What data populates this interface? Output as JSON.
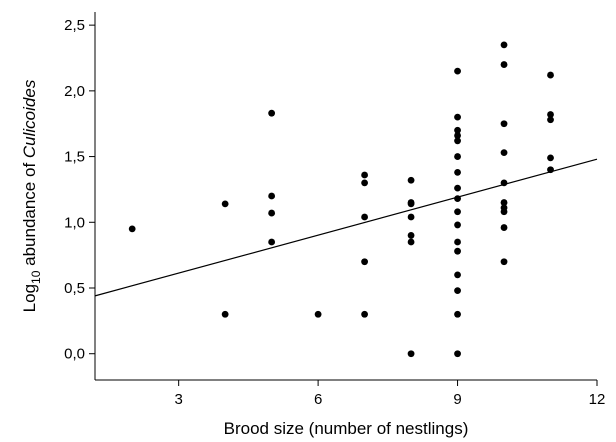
{
  "chart_data": {
    "type": "scatter",
    "xlabel": "Brood size (number of nestlings)",
    "ylabel": {
      "prefix": "Log",
      "subscript": "10",
      "middle": " abundance of ",
      "italic": "Culicoides"
    },
    "xlim": [
      1.2,
      12
    ],
    "ylim": [
      -0.2,
      2.6
    ],
    "xticks": [
      3,
      6,
      9,
      12
    ],
    "xtick_labels": [
      "3",
      "6",
      "9",
      "12"
    ],
    "yticks": [
      0,
      0.5,
      1.0,
      1.5,
      2.0,
      2.5
    ],
    "ytick_labels": [
      "0,0",
      "0,5",
      "1,0",
      "1,5",
      "2,0",
      "2,5"
    ],
    "grid": false,
    "points": [
      {
        "x": 2,
        "y": 0.95
      },
      {
        "x": 4,
        "y": 1.14
      },
      {
        "x": 4,
        "y": 0.3
      },
      {
        "x": 5,
        "y": 1.83
      },
      {
        "x": 5,
        "y": 1.2
      },
      {
        "x": 5,
        "y": 1.07
      },
      {
        "x": 5,
        "y": 0.85
      },
      {
        "x": 6,
        "y": 0.3
      },
      {
        "x": 7,
        "y": 1.36
      },
      {
        "x": 7,
        "y": 1.3
      },
      {
        "x": 7,
        "y": 1.04
      },
      {
        "x": 7,
        "y": 0.7
      },
      {
        "x": 7,
        "y": 0.3
      },
      {
        "x": 8,
        "y": 1.32
      },
      {
        "x": 8,
        "y": 1.15
      },
      {
        "x": 8,
        "y": 1.14
      },
      {
        "x": 8,
        "y": 1.04
      },
      {
        "x": 8,
        "y": 0.9
      },
      {
        "x": 8,
        "y": 0.85
      },
      {
        "x": 8,
        "y": 0.0
      },
      {
        "x": 9,
        "y": 2.15
      },
      {
        "x": 9,
        "y": 1.8
      },
      {
        "x": 9,
        "y": 1.7
      },
      {
        "x": 9,
        "y": 1.66
      },
      {
        "x": 9,
        "y": 1.62
      },
      {
        "x": 9,
        "y": 1.5
      },
      {
        "x": 9,
        "y": 1.38
      },
      {
        "x": 9,
        "y": 1.26
      },
      {
        "x": 9,
        "y": 1.18
      },
      {
        "x": 9,
        "y": 1.08
      },
      {
        "x": 9,
        "y": 0.98
      },
      {
        "x": 9,
        "y": 0.85
      },
      {
        "x": 9,
        "y": 0.78
      },
      {
        "x": 9,
        "y": 0.6
      },
      {
        "x": 9,
        "y": 0.48
      },
      {
        "x": 9,
        "y": 0.3
      },
      {
        "x": 9,
        "y": 0.0
      },
      {
        "x": 10,
        "y": 2.35
      },
      {
        "x": 10,
        "y": 2.2
      },
      {
        "x": 10,
        "y": 1.75
      },
      {
        "x": 10,
        "y": 1.53
      },
      {
        "x": 10,
        "y": 1.3
      },
      {
        "x": 10,
        "y": 1.15
      },
      {
        "x": 10,
        "y": 1.11
      },
      {
        "x": 10,
        "y": 1.08
      },
      {
        "x": 10,
        "y": 0.96
      },
      {
        "x": 10,
        "y": 0.7
      },
      {
        "x": 11,
        "y": 2.12
      },
      {
        "x": 11,
        "y": 1.82
      },
      {
        "x": 11,
        "y": 1.78
      },
      {
        "x": 11,
        "y": 1.49
      },
      {
        "x": 11,
        "y": 1.4
      }
    ],
    "regression_line": {
      "x": [
        1.2,
        12
      ],
      "y": [
        0.44,
        1.48
      ]
    }
  }
}
